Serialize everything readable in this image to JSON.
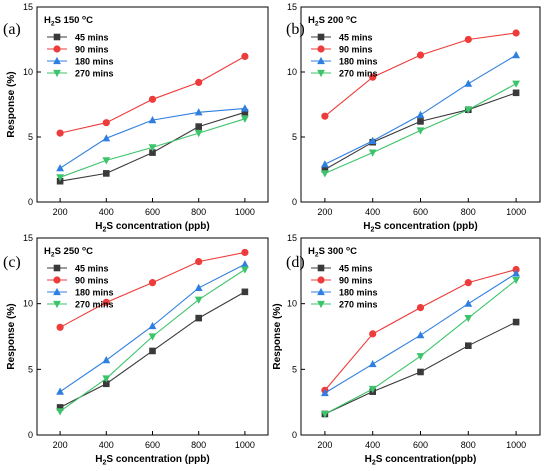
{
  "figure": {
    "legend_labels": [
      "45 mins",
      "90 mins",
      "180 mins",
      "270 mins"
    ]
  },
  "chart_data": [
    {
      "type": "line",
      "panel": "(a)",
      "condition": "H2S 150 °C",
      "x": [
        200,
        400,
        600,
        800,
        1000
      ],
      "xticks": [
        "200",
        "400",
        "600",
        "800",
        "1000"
      ],
      "yticks": [
        "0",
        "5",
        "10",
        "15"
      ],
      "xlabel": "H2S concentration (ppb)",
      "ylabel": "Response (%)",
      "xlim": [
        100,
        1100
      ],
      "ylim": [
        0,
        15
      ],
      "legend_position": "top-left",
      "series": [
        {
          "name": "45 mins",
          "color": "#3a3a3a",
          "marker": "square",
          "values": [
            1.6,
            2.2,
            3.8,
            5.8,
            6.9
          ]
        },
        {
          "name": "90 mins",
          "color": "#ee3b3b",
          "marker": "circle",
          "values": [
            5.3,
            6.1,
            7.9,
            9.2,
            11.2
          ]
        },
        {
          "name": "180 mins",
          "color": "#2f7fe0",
          "marker": "triangle-up",
          "values": [
            2.6,
            4.9,
            6.3,
            6.9,
            7.2
          ]
        },
        {
          "name": "270 mins",
          "color": "#3cc46a",
          "marker": "triangle-down",
          "values": [
            1.9,
            3.2,
            4.2,
            5.3,
            6.4
          ]
        }
      ]
    },
    {
      "type": "line",
      "panel": "(b)",
      "condition": "H2S 200 °C",
      "x": [
        200,
        400,
        600,
        800,
        1000
      ],
      "xticks": [
        "200",
        "400",
        "600",
        "800",
        "1000"
      ],
      "yticks": [
        "0",
        "5",
        "10",
        "15"
      ],
      "xlabel": "H2S concentration (ppb)",
      "ylabel": "",
      "xlim": [
        100,
        1100
      ],
      "ylim": [
        0,
        15
      ],
      "legend_position": "top-left",
      "series": [
        {
          "name": "45 mins",
          "color": "#3a3a3a",
          "marker": "square",
          "values": [
            2.5,
            4.6,
            6.2,
            7.1,
            8.4
          ]
        },
        {
          "name": "90 mins",
          "color": "#ee3b3b",
          "marker": "circle",
          "values": [
            6.6,
            9.6,
            11.3,
            12.5,
            13.0
          ]
        },
        {
          "name": "180 mins",
          "color": "#2f7fe0",
          "marker": "triangle-up",
          "values": [
            2.9,
            4.7,
            6.7,
            9.1,
            11.3
          ]
        },
        {
          "name": "270 mins",
          "color": "#3cc46a",
          "marker": "triangle-down",
          "values": [
            2.2,
            3.8,
            5.5,
            7.1,
            9.1
          ]
        }
      ]
    },
    {
      "type": "line",
      "panel": "(c)",
      "condition": "H2S 250 °C",
      "x": [
        200,
        400,
        600,
        800,
        1000
      ],
      "xticks": [
        "200",
        "400",
        "600",
        "800",
        "1000"
      ],
      "yticks": [
        "0",
        "5",
        "10",
        "15"
      ],
      "xlabel": "H2S concentration (ppb)",
      "ylabel": "Response (%)",
      "xlim": [
        100,
        1100
      ],
      "ylim": [
        0,
        15
      ],
      "legend_position": "top-left",
      "series": [
        {
          "name": "45 mins",
          "color": "#3a3a3a",
          "marker": "square",
          "values": [
            2.1,
            3.9,
            6.4,
            8.9,
            10.9
          ]
        },
        {
          "name": "90 mins",
          "color": "#ee3b3b",
          "marker": "circle",
          "values": [
            8.2,
            10.1,
            11.6,
            13.2,
            13.9
          ]
        },
        {
          "name": "180 mins",
          "color": "#2f7fe0",
          "marker": "triangle-up",
          "values": [
            3.3,
            5.7,
            8.3,
            11.2,
            13.0
          ]
        },
        {
          "name": "270 mins",
          "color": "#3cc46a",
          "marker": "triangle-down",
          "values": [
            1.8,
            4.3,
            7.5,
            10.3,
            12.6
          ]
        }
      ]
    },
    {
      "type": "line",
      "panel": "(d)",
      "condition": "H2S 300 °C",
      "x": [
        200,
        400,
        600,
        800,
        1000
      ],
      "xticks": [
        "200",
        "400",
        "600",
        "800",
        "1000"
      ],
      "yticks": [
        "0",
        "5",
        "10",
        "15"
      ],
      "xlabel": "H2S concentration(ppb)",
      "ylabel": "Response (%)",
      "xlim": [
        100,
        1100
      ],
      "ylim": [
        0,
        15
      ],
      "legend_position": "top-left",
      "series": [
        {
          "name": "45 mins",
          "color": "#3a3a3a",
          "marker": "square",
          "values": [
            1.6,
            3.3,
            4.8,
            6.8,
            8.6
          ]
        },
        {
          "name": "90 mins",
          "color": "#ee3b3b",
          "marker": "circle",
          "values": [
            3.4,
            7.7,
            9.7,
            11.6,
            12.6
          ]
        },
        {
          "name": "180 mins",
          "color": "#2f7fe0",
          "marker": "triangle-up",
          "values": [
            3.2,
            5.4,
            7.6,
            10.0,
            12.3
          ]
        },
        {
          "name": "270 mins",
          "color": "#3cc46a",
          "marker": "triangle-down",
          "values": [
            1.6,
            3.5,
            6.0,
            8.9,
            11.8
          ]
        }
      ]
    }
  ]
}
